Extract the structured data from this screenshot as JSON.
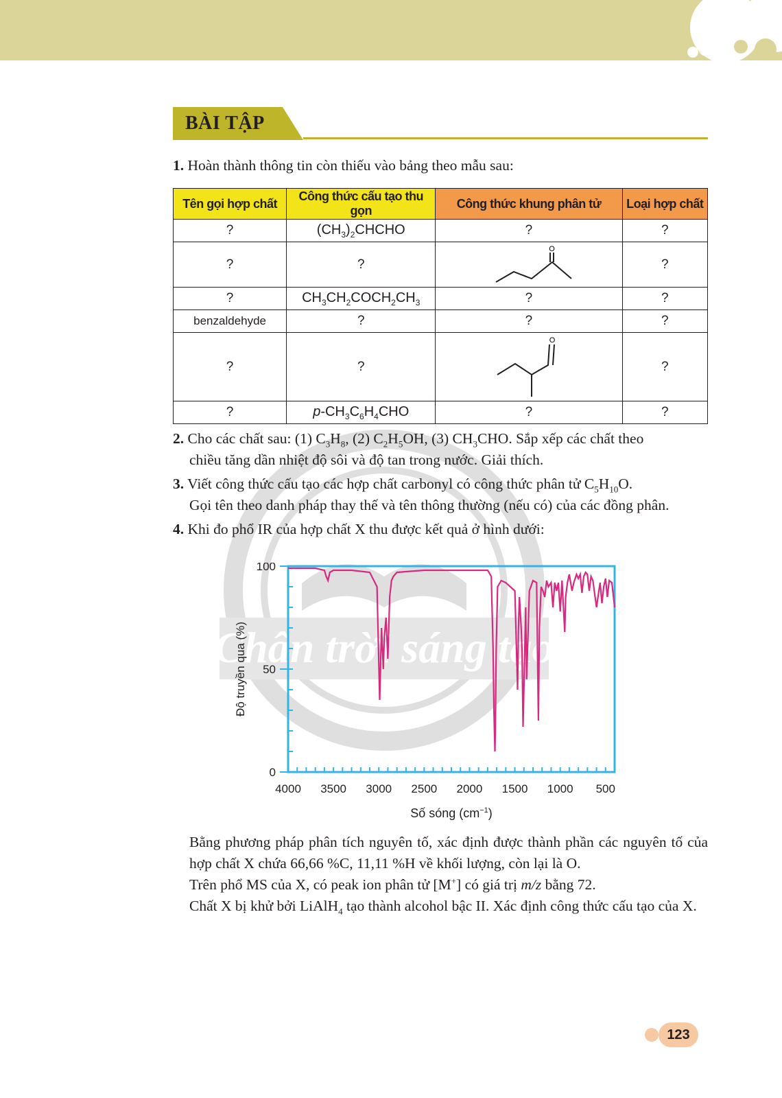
{
  "section": {
    "title": "BÀI TẬP"
  },
  "q1": {
    "num": "1.",
    "text": "Hoàn thành thông tin còn thiếu vào bảng theo mẫu sau:",
    "headers": [
      "Tên gọi hợp chất",
      "Công thức cấu tạo thu gọn",
      "Công thức khung phân tử",
      "Loại hợp chất"
    ],
    "placeholder": "?",
    "row4_name": "benzaldehyde",
    "oxygen_label": "O"
  },
  "q2": {
    "num": "2.",
    "text_a": "Cho các chất sau: (1) C",
    "text_b": ", (2) C",
    "text_c": "OH, (3) CH",
    "text_d": "CHO. Sắp xếp các chất theo",
    "line2": "chiều tăng dần nhiệt độ sôi và độ tan trong nước. Giải thích."
  },
  "q3": {
    "num": "3.",
    "text_a": "Viết công thức cấu tạo các hợp chất carbonyl có công thức phân tử C",
    "text_b": "O.",
    "line2": "Gọi tên theo danh pháp thay thế và tên thông thường (nếu có) của các đồng phân."
  },
  "q4": {
    "num": "4.",
    "text": "Khi đo phổ IR của hợp chất X thu được kết quả ở hình dưới:",
    "p1": "Bằng phương pháp phân tích nguyên tố, xác định được thành phần các nguyên tố của hợp chất X chứa 66,66 %C, 11,11 %H về khối lượng, còn lại là O.",
    "p2_a": "Trên phổ MS của X, có peak ion phân tử [M",
    "p2_b": "] có giá trị",
    "p2_mz": "m/z",
    "p2_c": "bằng 72.",
    "p3_a": "Chất X bị khử bởi LiAlH",
    "p3_b": "tạo thành alcohol bậc II. Xác định công thức cấu tạo của X."
  },
  "chart_data": {
    "type": "line",
    "xlabel": "Số sóng (cm",
    "xlabel_sup": "−1",
    "xlabel_end": ")",
    "ylabel": "Độ truyền qua (%)",
    "xlim": [
      4000,
      400
    ],
    "ylim": [
      0,
      100
    ],
    "x_ticks": [
      4000,
      3500,
      3000,
      2500,
      2000,
      1500,
      1000,
      500
    ],
    "y_ticks": [
      0,
      50,
      100
    ],
    "grid": false,
    "series": [
      {
        "color": "#d6297f",
        "x": [
          4000,
          3900,
          3700,
          3600,
          3580,
          3560,
          3540,
          3500,
          3300,
          3100,
          3020,
          2990,
          2970,
          2950,
          2940,
          2920,
          2900,
          2880,
          2860,
          2840,
          2800,
          2500,
          2200,
          2000,
          1800,
          1760,
          1740,
          1730,
          1720,
          1715,
          1705,
          1690,
          1650,
          1600,
          1500,
          1470,
          1460,
          1450,
          1430,
          1420,
          1410,
          1380,
          1370,
          1360,
          1340,
          1300,
          1260,
          1240,
          1230,
          1210,
          1190,
          1170,
          1150,
          1130,
          1100,
          1080,
          1060,
          1040,
          1020,
          1000,
          980,
          950,
          940,
          920,
          900,
          870,
          850,
          820,
          800,
          780,
          760,
          740,
          720,
          700,
          680,
          660,
          640,
          600,
          560,
          540,
          520,
          500,
          480,
          460,
          430,
          400
        ],
        "y": [
          99,
          99,
          99,
          98,
          95,
          93,
          97,
          98,
          98,
          97,
          90,
          35,
          70,
          50,
          65,
          75,
          55,
          85,
          93,
          95,
          97,
          98,
          98,
          98,
          98,
          95,
          60,
          30,
          10,
          20,
          60,
          90,
          93,
          92,
          88,
          40,
          70,
          85,
          70,
          58,
          22,
          80,
          45,
          60,
          88,
          93,
          92,
          25,
          70,
          90,
          88,
          85,
          93,
          90,
          92,
          80,
          92,
          88,
          92,
          78,
          93,
          68,
          85,
          92,
          96,
          88,
          92,
          96,
          94,
          96,
          87,
          95,
          97,
          96,
          88,
          95,
          93,
          80,
          92,
          82,
          90,
          94,
          85,
          93,
          92,
          80
        ]
      }
    ]
  },
  "watermark": {
    "text": "Chân trời sáng tạo"
  },
  "page": {
    "number": "123"
  }
}
